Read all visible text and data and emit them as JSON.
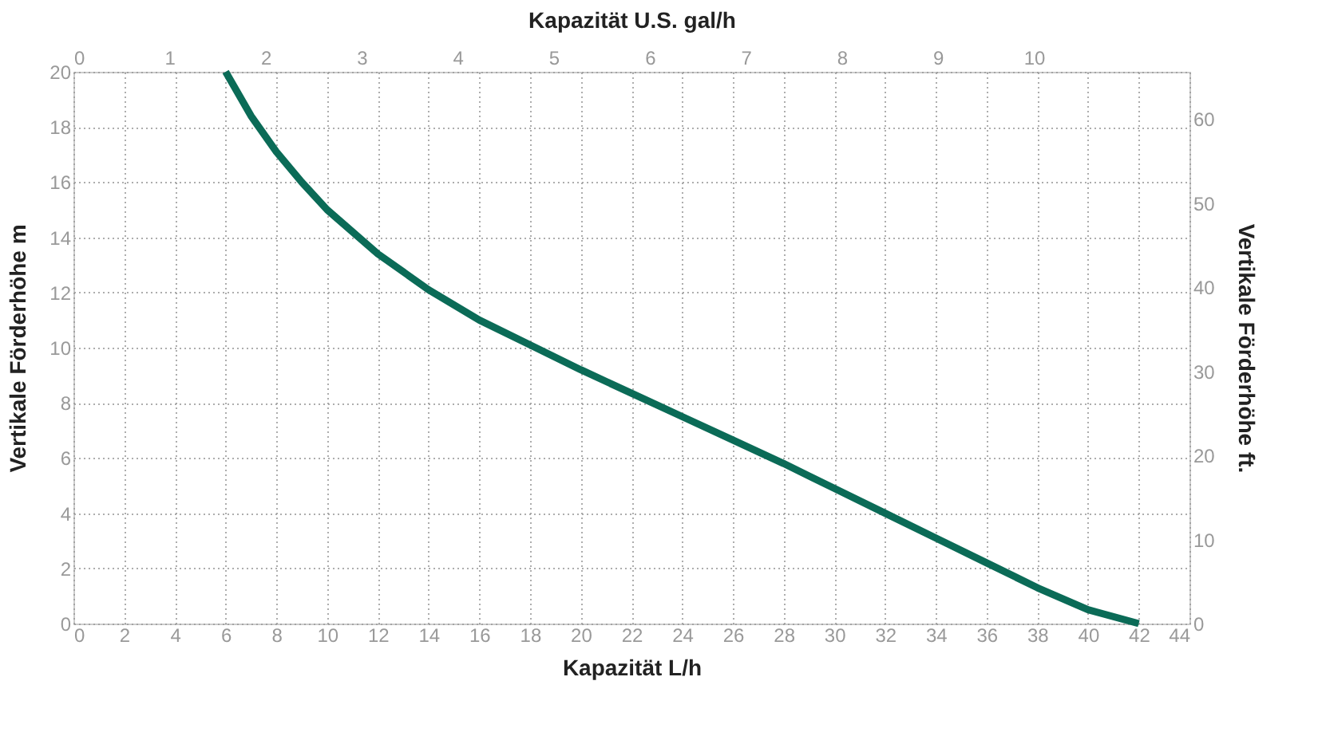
{
  "chart_data": {
    "type": "line",
    "xlabel": "Kapazität L/h",
    "ylabel": "Vertikale Förderhöhe m",
    "x2label": "Kapazität U.S. gal/h",
    "y2label": "Vertikale Förderhöhe ft.",
    "x": [
      6,
      7,
      8,
      9,
      10,
      12,
      14,
      16,
      18,
      20,
      22,
      24,
      26,
      28,
      30,
      32,
      34,
      36,
      38,
      40,
      42
    ],
    "series": [
      {
        "color": "#0b6b57",
        "values": [
          20,
          18.4,
          17.1,
          16,
          15,
          13.4,
          12.1,
          11,
          10.1,
          9.2,
          8.35,
          7.5,
          6.65,
          5.8,
          4.9,
          4,
          3.1,
          2.2,
          1.3,
          0.5,
          0
        ]
      }
    ],
    "xlim": [
      0,
      44
    ],
    "xticks": [
      0,
      2,
      4,
      6,
      8,
      10,
      12,
      14,
      16,
      18,
      20,
      22,
      24,
      26,
      28,
      30,
      32,
      34,
      36,
      38,
      40,
      42,
      44
    ],
    "ylim": [
      0,
      20
    ],
    "yticks": [
      0,
      2,
      4,
      6,
      8,
      10,
      12,
      14,
      16,
      18,
      20
    ],
    "x2lim": [
      0,
      11.62
    ],
    "x2ticks": [
      0,
      1,
      2,
      3,
      4,
      5,
      6,
      7,
      8,
      9,
      10
    ],
    "y2lim": [
      0,
      65.6
    ],
    "y2ticks": [
      0,
      10,
      20,
      30,
      40,
      50,
      60
    ],
    "grid": true,
    "line_style": "solid",
    "marker": "none"
  }
}
